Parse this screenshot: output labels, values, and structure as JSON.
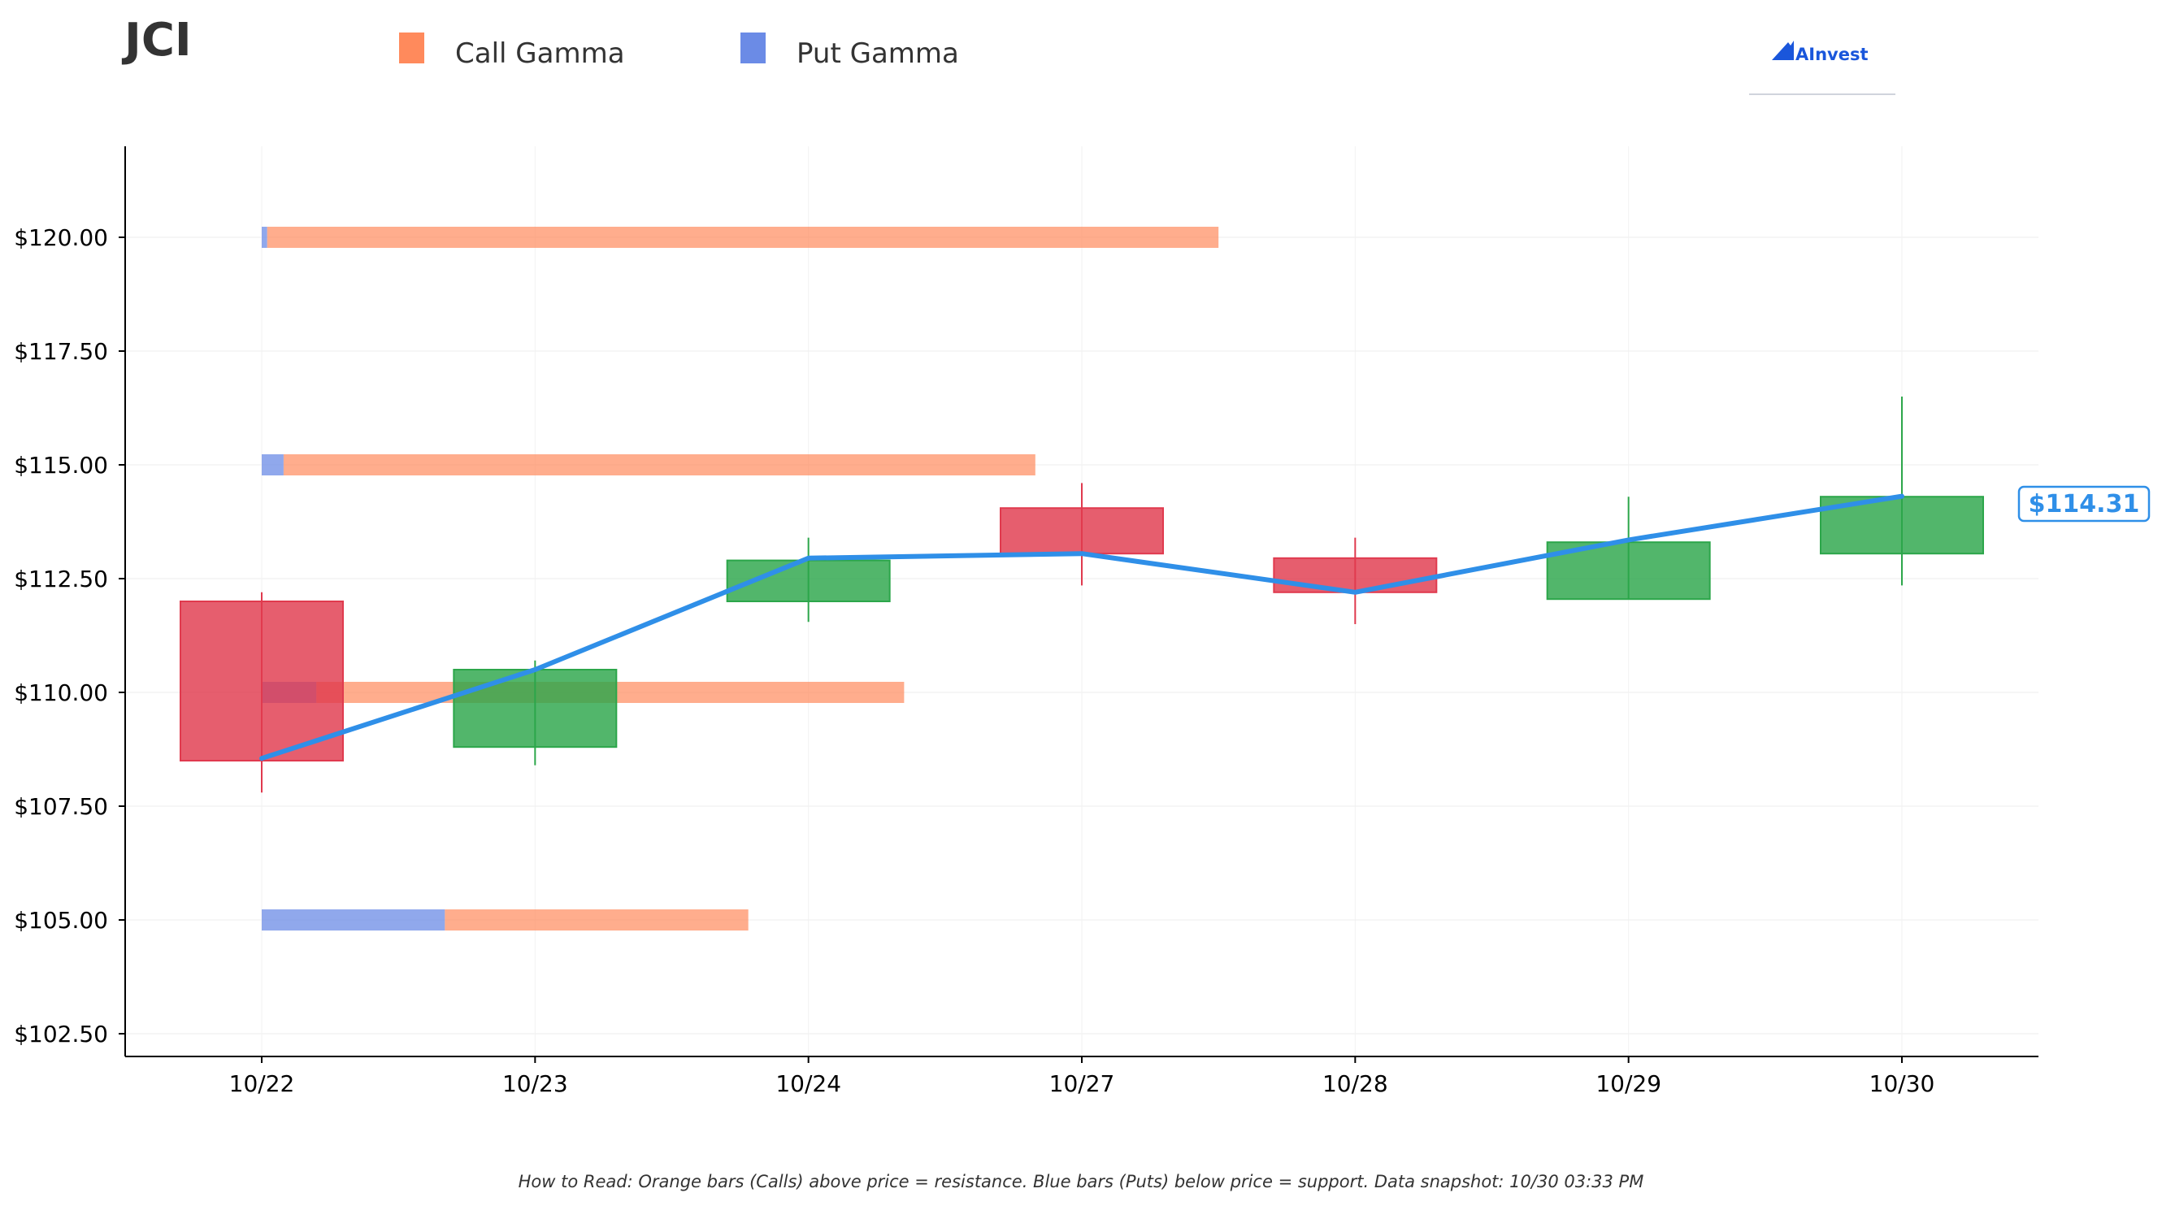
{
  "title": "JCI",
  "legend": [
    {
      "label": "Call Gamma",
      "color": "#ff8a5c"
    },
    {
      "label": "Put Gamma",
      "color": "#6b8be6"
    }
  ],
  "logo": {
    "text": "AInvest"
  },
  "note": "How to Read: Orange bars (Calls) above price = resistance. Blue bars (Puts) below price = support. Data snapshot: 10/30 03:33 PM",
  "price_label": "$114.31",
  "colors": {
    "up": "#2ca64a",
    "down": "#e03a4e",
    "call": "#ff8a5c",
    "put": "#6b8be6",
    "line": "#2f8fe8"
  },
  "chart_data": {
    "type": "candlestick",
    "categories": [
      "10/22",
      "10/23",
      "10/24",
      "10/27",
      "10/28",
      "10/29",
      "10/30"
    ],
    "ylim": [
      102.0,
      122.0
    ],
    "yticks": [
      102.5,
      105.0,
      107.5,
      110.0,
      112.5,
      115.0,
      117.5,
      120.0
    ],
    "ytick_labels": [
      "$102.50",
      "$105.00",
      "$107.50",
      "$110.00",
      "$112.50",
      "$115.00",
      "$117.50",
      "$120.00"
    ],
    "grid": true,
    "candles": [
      {
        "date": "10/22",
        "open": 112.0,
        "close": 108.5,
        "high": 112.2,
        "low": 107.8
      },
      {
        "date": "10/23",
        "open": 108.8,
        "close": 110.5,
        "high": 110.7,
        "low": 108.4
      },
      {
        "date": "10/24",
        "open": 112.0,
        "close": 112.9,
        "high": 113.4,
        "low": 111.55
      },
      {
        "date": "10/27",
        "open": 114.05,
        "close": 113.05,
        "high": 114.6,
        "low": 112.35
      },
      {
        "date": "10/28",
        "open": 112.95,
        "close": 112.2,
        "high": 113.4,
        "low": 111.5
      },
      {
        "date": "10/29",
        "open": 112.05,
        "close": 113.3,
        "high": 114.3,
        "low": 112.05
      },
      {
        "date": "10/30",
        "open": 113.05,
        "close": 114.3,
        "high": 116.5,
        "low": 112.35
      }
    ],
    "price_line": [
      108.55,
      110.5,
      112.95,
      113.05,
      112.2,
      113.35,
      114.31
    ],
    "gamma_levels": [
      {
        "strike": 120.0,
        "put": 0.02,
        "call": 3.48
      },
      {
        "strike": 115.0,
        "put": 0.08,
        "call": 2.75
      },
      {
        "strike": 110.0,
        "put": 0.2,
        "call": 2.15
      },
      {
        "strike": 105.0,
        "put": 0.67,
        "call": 1.11
      }
    ]
  }
}
